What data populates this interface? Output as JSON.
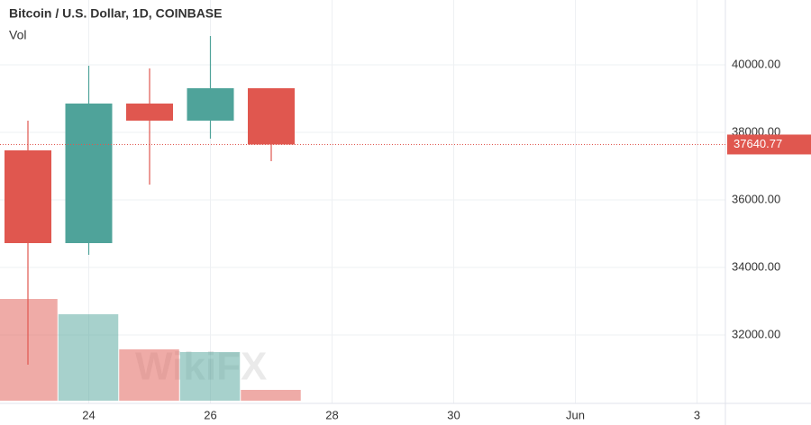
{
  "chart_data": {
    "type": "candlestick",
    "title": "Bitcoin / U.S. Dollar, 1D, COINBASE",
    "subtitle": "Vol",
    "watermark": "WikiFX",
    "categories": [
      null,
      "24",
      null,
      "26",
      null,
      "28",
      null,
      "30",
      null,
      "Jun",
      null,
      "3"
    ],
    "open": [
      37467,
      34720,
      38853,
      38347,
      39307,
      null,
      null,
      null,
      null,
      null,
      null,
      null
    ],
    "high": [
      38347,
      39973,
      39893,
      40853,
      39307,
      null,
      null,
      null,
      null,
      null,
      null,
      null
    ],
    "low": [
      31120,
      34373,
      36453,
      37813,
      37147,
      null,
      null,
      null,
      null,
      null,
      null,
      null
    ],
    "close": [
      34720,
      38853,
      38347,
      39307,
      37640.77,
      null,
      null,
      null,
      null,
      null,
      null,
      null
    ],
    "volume": [
      113,
      96,
      57,
      54,
      12,
      null,
      null,
      null,
      null,
      null,
      null,
      null
    ],
    "up_color": "#4fa39a",
    "down_color": "#e0574f",
    "ylim": [
      29973,
      41920
    ],
    "yticks": [
      {
        "value": 32000,
        "label": "32000.00"
      },
      {
        "value": 34000,
        "label": "34000.00"
      },
      {
        "value": 36000,
        "label": "36000.00"
      },
      {
        "value": 38000,
        "label": "38000.00"
      },
      {
        "value": 40000,
        "label": "40000.00"
      }
    ],
    "grid": true
  }
}
